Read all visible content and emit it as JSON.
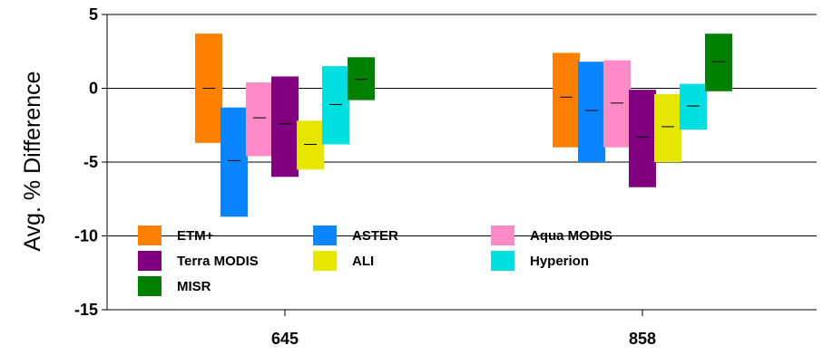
{
  "chart_data": {
    "type": "bar",
    "subtype": "floating-range",
    "title": "",
    "xlabel": "",
    "ylabel": "Avg. % Difference",
    "ylim": [
      -15,
      5
    ],
    "yticks": [
      5,
      0,
      -5,
      -10,
      -15
    ],
    "grid": true,
    "legend_position": "bottom-left, inside plot",
    "categories": [
      "645",
      "858"
    ],
    "series": [
      {
        "name": "ETM+",
        "color": "#ff8000",
        "low": [
          -3.7,
          -4.0
        ],
        "high": [
          3.7,
          2.4
        ],
        "mean": [
          0.0,
          -0.6
        ]
      },
      {
        "name": "ASTER",
        "color": "#0a84ff",
        "low": [
          -8.7,
          -5.0
        ],
        "high": [
          -1.3,
          1.8
        ],
        "mean": [
          -4.9,
          -1.5
        ]
      },
      {
        "name": "Aqua MODIS",
        "color": "#ff8ac8",
        "low": [
          -4.6,
          -4.0
        ],
        "high": [
          0.4,
          1.9
        ],
        "mean": [
          -2.0,
          -1.0
        ]
      },
      {
        "name": "Terra MODIS",
        "color": "#800080",
        "low": [
          -6.0,
          -6.7
        ],
        "high": [
          0.8,
          -0.1
        ],
        "mean": [
          -2.4,
          -3.3
        ]
      },
      {
        "name": "ALI",
        "color": "#e6e600",
        "low": [
          -5.5,
          -5.0
        ],
        "high": [
          -2.2,
          -0.4
        ],
        "mean": [
          -3.8,
          -2.6
        ]
      },
      {
        "name": "Hyperion",
        "color": "#00e0e0",
        "low": [
          -3.8,
          -2.8
        ],
        "high": [
          1.5,
          0.3
        ],
        "mean": [
          -1.1,
          -1.2
        ]
      },
      {
        "name": "MISR",
        "color": "#008000",
        "low": [
          -0.8,
          -0.2
        ],
        "high": [
          2.1,
          3.7
        ],
        "mean": [
          0.6,
          1.8
        ]
      }
    ]
  }
}
